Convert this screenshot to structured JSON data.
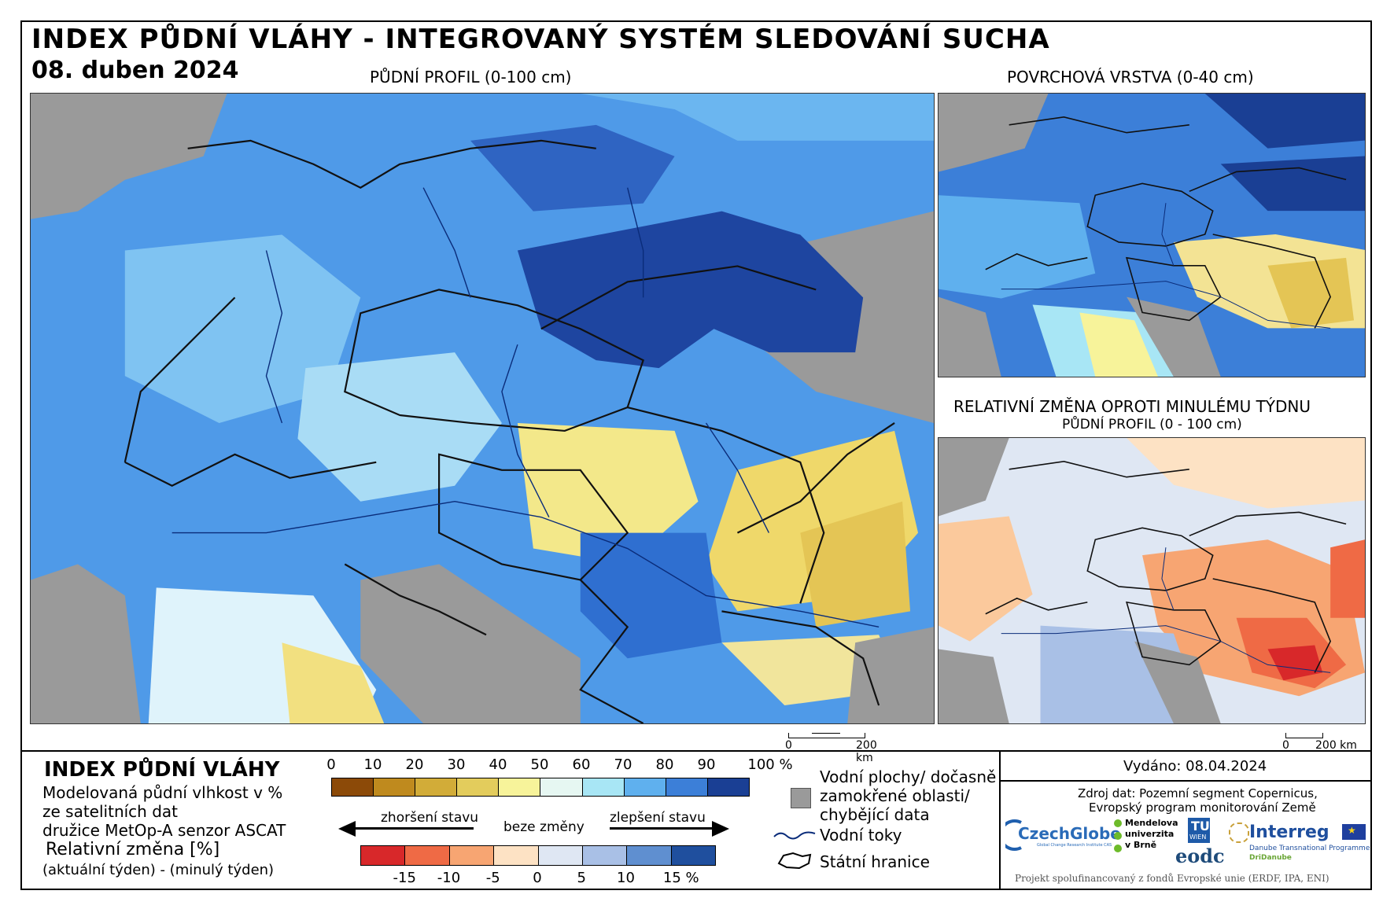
{
  "header": {
    "title": "INDEX PŮDNÍ VLÁHY - INTEGROVANÝ SYSTÉM SLEDOVÁNÍ SUCHA",
    "date": "08. duben 2024"
  },
  "maps": {
    "main_label": "PŮDNÍ PROFIL (0-100 cm)",
    "surface_label": "POVRCHOVÁ VRSTVA (0-40 cm)",
    "change_label": "RELATIVNÍ ZMĚNA OPROTI MINULÉMU TÝDNU",
    "change_sublabel": "PŮDNÍ PROFIL (0 - 100 cm)",
    "scale_zero": "0",
    "scale_km": "200 km"
  },
  "legend": {
    "title": "INDEX PŮDNÍ VLÁHY",
    "desc_line1": "Modelovaná půdní vlhkost v %",
    "desc_line2": "ze satelitních dat",
    "desc_line3": "družice MetOp-A senzor ASCAT",
    "change_title": "Relativní změna [%]",
    "change_desc": "(aktuální týden) - (minulý týden)",
    "index_ticks": [
      "0",
      "10",
      "20",
      "30",
      "40",
      "50",
      "60",
      "70",
      "80",
      "90",
      "100 %"
    ],
    "index_colors": [
      "#8c4a08",
      "#bf8a1e",
      "#d2ac38",
      "#e3cc5c",
      "#f7f39a",
      "#e6f7f2",
      "#a8e6f5",
      "#5fb0ee",
      "#3c7fd8",
      "#1a3f94"
    ],
    "worse_label": "zhoršení stavu",
    "nochange_label": "beze změny",
    "better_label": "zlepšení stavu",
    "change_ticks": [
      "-15",
      "-10",
      "-5",
      "0",
      "5",
      "10",
      "15 %"
    ],
    "change_colors": [
      "#d8282a",
      "#ef6a45",
      "#f7a572",
      "#fde2c4",
      "#dfe7f3",
      "#a9c0e6",
      "#5f8fd0",
      "#1f4f9e"
    ],
    "water_label_1": "Vodní plochy/ dočasně",
    "water_label_2": "zamokřené oblasti/",
    "water_label_3": "chybějící data",
    "rivers_label": "Vodní toky",
    "borders_label": "Státní hranice"
  },
  "info": {
    "issued": "Vydáno: 08.04.2024",
    "source_1": "Zdroj dat: Pozemní segment Copernicus,",
    "source_2": "Evropský program monitorování Země",
    "footer": "Projekt spolufinancovaný z fondů Evropské unie (ERDF, IPA, ENI)",
    "logo_czechglobe": "CzechGlobe",
    "logo_czechglobe_sub": "Global Change Research Institute CAS",
    "logo_mendel_1": "Mendelova",
    "logo_mendel_2": "univerzita",
    "logo_mendel_3": "v Brně",
    "logo_tu": "TU",
    "logo_tu_sub": "WIEN",
    "logo_eodc": "eodc",
    "logo_interreg": "Interreg",
    "logo_interreg_sub": "Danube Transnational Programme",
    "logo_dridanube": "DriDanube"
  }
}
